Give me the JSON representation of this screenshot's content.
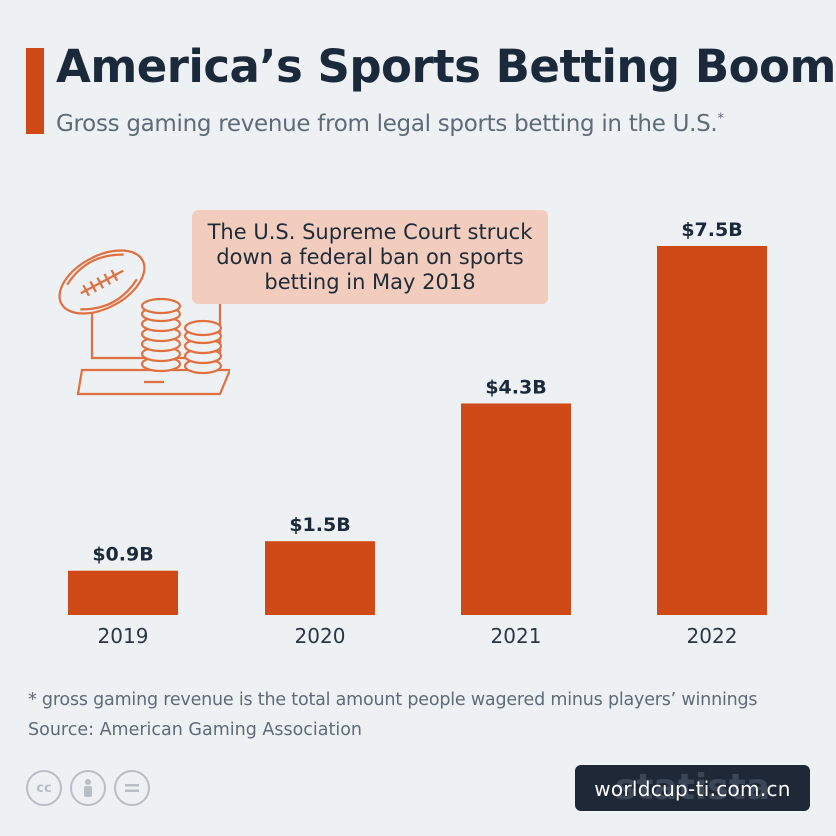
{
  "header": {
    "title": "America’s Sports Betting Boom",
    "subtitle": "Gross gaming revenue from legal sports betting in the U.S.",
    "subtitle_mark": "*"
  },
  "callout": {
    "text": "The U.S. Supreme Court struck down a federal ban on sports betting in May 2018"
  },
  "colors": {
    "accent": "#cf4a17",
    "title": "#1b2a3b",
    "callout_bg": "#f2cdbd",
    "background": "#eef1f4"
  },
  "chart_data": {
    "type": "bar",
    "categories": [
      "2019",
      "2020",
      "2021",
      "2022"
    ],
    "values": [
      0.9,
      1.5,
      4.3,
      7.5
    ],
    "data_labels": [
      "$0.9B",
      "$1.5B",
      "$4.3B",
      "$7.5B"
    ],
    "title": "America’s Sports Betting Boom",
    "subtitle": "Gross gaming revenue from legal sports betting in the U.S.*",
    "xlabel": "",
    "ylabel": "",
    "ylim": [
      0,
      7.5
    ],
    "grid": false,
    "legend": "none"
  },
  "footer": {
    "footnote": "* gross gaming revenue is the total amount people wagered minus players’ winnings",
    "source": "Source: American Gaming Association",
    "license_icons": [
      "cc-icon",
      "attribution-icon",
      "no-derivatives-icon"
    ],
    "brand_logo": "statista",
    "watermark": "worldcup-ti.com.cn"
  }
}
